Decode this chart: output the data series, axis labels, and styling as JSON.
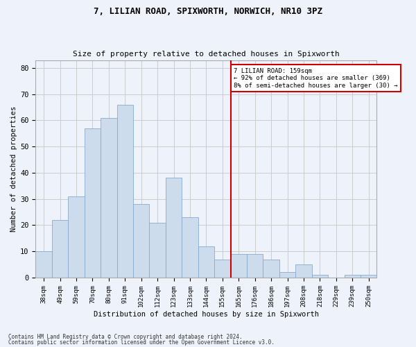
{
  "title": "7, LILIAN ROAD, SPIXWORTH, NORWICH, NR10 3PZ",
  "subtitle": "Size of property relative to detached houses in Spixworth",
  "xlabel": "Distribution of detached houses by size in Spixworth",
  "ylabel": "Number of detached properties",
  "bar_labels": [
    "38sqm",
    "49sqm",
    "59sqm",
    "70sqm",
    "80sqm",
    "91sqm",
    "102sqm",
    "112sqm",
    "123sqm",
    "133sqm",
    "144sqm",
    "155sqm",
    "165sqm",
    "176sqm",
    "186sqm",
    "197sqm",
    "208sqm",
    "218sqm",
    "229sqm",
    "239sqm",
    "250sqm"
  ],
  "bar_values": [
    10,
    22,
    31,
    57,
    61,
    66,
    28,
    21,
    38,
    23,
    12,
    7,
    9,
    9,
    7,
    2,
    5,
    1,
    0,
    1,
    1
  ],
  "bar_color": "#ccdcec",
  "bar_edge_color": "#88aacc",
  "grid_color": "#cccccc",
  "background_color": "#eef2fa",
  "subject_label": "7 LILIAN ROAD: 159sqm",
  "annotation_line1": "← 92% of detached houses are smaller (369)",
  "annotation_line2": "8% of semi-detached houses are larger (30) →",
  "annotation_box_color": "#cc0000",
  "ylim": [
    0,
    83
  ],
  "yticks": [
    0,
    10,
    20,
    30,
    40,
    50,
    60,
    70,
    80
  ],
  "footer_line1": "Contains HM Land Registry data © Crown copyright and database right 2024.",
  "footer_line2": "Contains public sector information licensed under the Open Government Licence v3.0."
}
